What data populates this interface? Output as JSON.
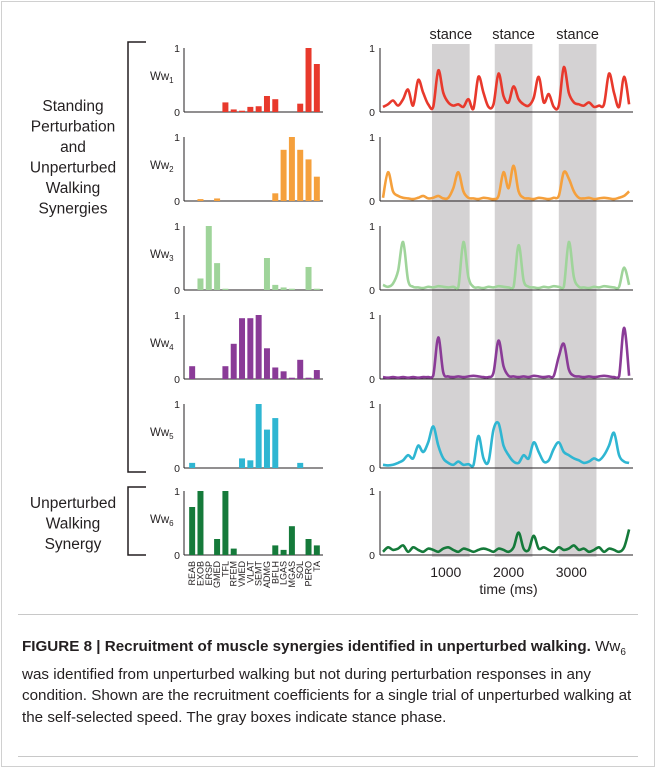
{
  "group_labels": {
    "standing": [
      "Standing",
      "Perturbation",
      "and",
      "Unperturbed",
      "Walking",
      "Synergies"
    ],
    "unperturbed": [
      "Unperturbed",
      "Walking",
      "Synergy"
    ]
  },
  "stance_labels": [
    "stance",
    "stance",
    "stance"
  ],
  "caption": {
    "bold": "FIGURE 8 | Recruitment of muscle synergies identified in unperturbed walking.",
    "ww": "Ww",
    "sub": "6",
    "rest": " was identified from unperturbed walking but not during perturbation responses in any condition. Shown are the recruitment coefficients for a single trial of unperturbed walking at the self-selected speed. The gray boxes indicate stance phase."
  },
  "chart_data": [
    {
      "type": "bar",
      "panel": "synergy weights",
      "categories": [
        "REAB",
        "EXOB",
        "ERSP",
        "GMED",
        "TFL",
        "RFEM",
        "VMED",
        "VLAT",
        "SEMT",
        "ADMG",
        "BFLH",
        "LGAS",
        "MGAS",
        "SOL",
        "PERO",
        "TA"
      ],
      "ylim": [
        0,
        1
      ],
      "yticks": [
        "0",
        "1"
      ],
      "series": [
        {
          "name": "Ww1",
          "color": "#e8392c",
          "values": [
            0,
            0,
            0,
            0,
            0.15,
            0.04,
            0.02,
            0.08,
            0.09,
            0.25,
            0.2,
            0,
            0,
            0.13,
            1.0,
            0.75
          ]
        },
        {
          "name": "Ww2",
          "color": "#f5a03c",
          "values": [
            0,
            0.03,
            0,
            0.04,
            0,
            0,
            0,
            0,
            0,
            0,
            0.12,
            0.8,
            1.0,
            0.8,
            0.65,
            0.38
          ]
        },
        {
          "name": "Ww3",
          "color": "#9fd49a",
          "values": [
            0,
            0.18,
            1.0,
            0.42,
            0.02,
            0,
            0,
            0,
            0,
            0.5,
            0.08,
            0.04,
            0.02,
            0,
            0.36,
            0.02
          ]
        },
        {
          "name": "Ww4",
          "color": "#8a3b97",
          "values": [
            0.2,
            0,
            0,
            0,
            0.2,
            0.55,
            0.95,
            0.95,
            1.0,
            0.48,
            0.18,
            0.12,
            0.02,
            0.3,
            0.02,
            0.14
          ]
        },
        {
          "name": "Ww5",
          "color": "#2fb6d2",
          "values": [
            0.08,
            0,
            0,
            0,
            0,
            0,
            0.15,
            0.12,
            1.0,
            0.6,
            0.78,
            0,
            0,
            0.08,
            0,
            0
          ]
        },
        {
          "name": "Ww6",
          "color": "#157a3a",
          "values": [
            0.75,
            1.0,
            0,
            0.25,
            1.0,
            0.1,
            0,
            0,
            0,
            0,
            0.15,
            0.08,
            0.45,
            0,
            0.25,
            0.15
          ]
        }
      ]
    },
    {
      "type": "line",
      "panel": "recruitment coefficients",
      "xlabel": "time (ms)",
      "xlim": [
        0,
        3950
      ],
      "xticks": [
        1000,
        2000,
        3000
      ],
      "ylim": [
        0,
        1
      ],
      "yticks": [
        "0",
        "1"
      ],
      "stance_phases": [
        [
          780,
          1380
        ],
        [
          1780,
          2380
        ],
        [
          2800,
          3400
        ]
      ],
      "x": [
        0,
        80,
        160,
        240,
        320,
        400,
        480,
        560,
        640,
        720,
        800,
        880,
        960,
        1040,
        1120,
        1200,
        1280,
        1360,
        1440,
        1520,
        1600,
        1680,
        1760,
        1840,
        1920,
        2000,
        2080,
        2160,
        2240,
        2320,
        2400,
        2480,
        2560,
        2640,
        2720,
        2800,
        2880,
        2960,
        3040,
        3120,
        3200,
        3280,
        3360,
        3440,
        3520,
        3600,
        3680,
        3760,
        3840,
        3920
      ],
      "series": [
        {
          "name": "Ww1",
          "color": "#e8392c",
          "values": [
            0.08,
            0.12,
            0.18,
            0.1,
            0.2,
            0.35,
            0.1,
            0.5,
            0.3,
            0.12,
            0.08,
            0.65,
            0.3,
            0.15,
            0.1,
            0.12,
            0.08,
            0.2,
            0.05,
            0.55,
            0.3,
            0.08,
            0.12,
            0.6,
            0.25,
            0.15,
            0.4,
            0.2,
            0.12,
            0.1,
            0.22,
            0.55,
            0.15,
            0.28,
            0.08,
            0.1,
            0.7,
            0.3,
            0.15,
            0.12,
            0.1,
            0.15,
            0.08,
            0.1,
            0.12,
            0.6,
            0.3,
            0.08,
            0.55,
            0.12
          ]
        },
        {
          "name": "Ww2",
          "color": "#f5a03c",
          "values": [
            0.05,
            0.45,
            0.15,
            0.08,
            0.05,
            0.04,
            0.03,
            0.05,
            0.08,
            0.04,
            0.05,
            0.08,
            0.04,
            0.05,
            0.2,
            0.45,
            0.15,
            0.05,
            0.04,
            0.03,
            0.05,
            0.04,
            0.03,
            0.08,
            0.45,
            0.2,
            0.55,
            0.15,
            0.05,
            0.04,
            0.03,
            0.05,
            0.04,
            0.03,
            0.05,
            0.08,
            0.45,
            0.35,
            0.15,
            0.05,
            0.04,
            0.05,
            0.03,
            0.04,
            0.05,
            0.04,
            0.03,
            0.05,
            0.08,
            0.15
          ]
        },
        {
          "name": "Ww3",
          "color": "#9fd49a",
          "values": [
            0.08,
            0.05,
            0.1,
            0.3,
            0.75,
            0.15,
            0.05,
            0.04,
            0.03,
            0.05,
            0.04,
            0.06,
            0.05,
            0.04,
            0.05,
            0.04,
            0.75,
            0.2,
            0.05,
            0.04,
            0.03,
            0.05,
            0.04,
            0.06,
            0.05,
            0.04,
            0.05,
            0.7,
            0.15,
            0.05,
            0.04,
            0.03,
            0.05,
            0.04,
            0.06,
            0.05,
            0.05,
            0.75,
            0.2,
            0.05,
            0.04,
            0.03,
            0.05,
            0.04,
            0.06,
            0.05,
            0.04,
            0.05,
            0.35,
            0.08
          ]
        },
        {
          "name": "Ww4",
          "color": "#8a3b97",
          "values": [
            0.03,
            0.02,
            0.03,
            0.02,
            0.03,
            0.02,
            0.03,
            0.02,
            0.03,
            0.03,
            0.05,
            0.65,
            0.1,
            0.04,
            0.03,
            0.04,
            0.03,
            0.04,
            0.05,
            0.04,
            0.03,
            0.03,
            0.1,
            0.6,
            0.2,
            0.05,
            0.04,
            0.03,
            0.04,
            0.03,
            0.05,
            0.04,
            0.03,
            0.04,
            0.05,
            0.35,
            0.55,
            0.15,
            0.05,
            0.04,
            0.03,
            0.04,
            0.03,
            0.04,
            0.05,
            0.04,
            0.03,
            0.04,
            0.8,
            0.05
          ]
        },
        {
          "name": "Ww5",
          "color": "#2fb6d2",
          "values": [
            0.05,
            0.04,
            0.05,
            0.08,
            0.12,
            0.2,
            0.15,
            0.35,
            0.25,
            0.4,
            0.65,
            0.35,
            0.15,
            0.08,
            0.05,
            0.1,
            0.05,
            0.06,
            0.04,
            0.5,
            0.15,
            0.1,
            0.6,
            0.7,
            0.35,
            0.2,
            0.1,
            0.08,
            0.2,
            0.15,
            0.4,
            0.25,
            0.1,
            0.12,
            0.3,
            0.4,
            0.25,
            0.2,
            0.15,
            0.12,
            0.08,
            0.1,
            0.15,
            0.12,
            0.2,
            0.35,
            0.55,
            0.2,
            0.1,
            0.08
          ]
        },
        {
          "name": "Ww6",
          "color": "#157a3a",
          "values": [
            0.05,
            0.12,
            0.08,
            0.1,
            0.15,
            0.05,
            0.12,
            0.08,
            0.05,
            0.1,
            0.08,
            0.05,
            0.1,
            0.12,
            0.08,
            0.05,
            0.1,
            0.08,
            0.05,
            0.08,
            0.1,
            0.08,
            0.05,
            0.1,
            0.08,
            0.05,
            0.12,
            0.35,
            0.1,
            0.08,
            0.3,
            0.1,
            0.12,
            0.08,
            0.05,
            0.12,
            0.08,
            0.1,
            0.15,
            0.08,
            0.1,
            0.05,
            0.08,
            0.12,
            0.05,
            0.1,
            0.08,
            0.05,
            0.12,
            0.4
          ]
        }
      ]
    }
  ]
}
